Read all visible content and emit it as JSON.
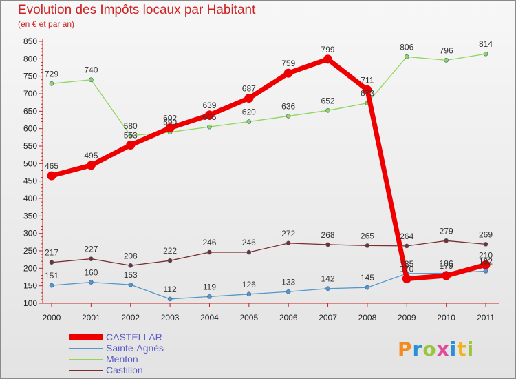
{
  "header": {
    "title": "Evolution des Impôts locaux par Habitant",
    "subtitle": "(en € et par an)"
  },
  "logo": {
    "text": "Proxiti",
    "letters": [
      {
        "ch": "P",
        "color": "#f28c1e"
      },
      {
        "ch": "r",
        "color": "#2a8fd4"
      },
      {
        "ch": "o",
        "color": "#9ac43c"
      },
      {
        "ch": "x",
        "color": "#e04c9c"
      },
      {
        "ch": "i",
        "color": "#2a8fd4"
      },
      {
        "ch": "t",
        "color": "#f2b21e"
      },
      {
        "ch": "i",
        "color": "#9ac43c"
      }
    ]
  },
  "chart_data": {
    "type": "line",
    "x": [
      "2000",
      "2001",
      "2002",
      "2003",
      "2004",
      "2005",
      "2006",
      "2007",
      "2008",
      "2009",
      "2010",
      "2011"
    ],
    "yticks": [
      100,
      150,
      200,
      250,
      300,
      350,
      400,
      450,
      500,
      550,
      600,
      650,
      700,
      750,
      800,
      850
    ],
    "ylim": [
      100,
      850
    ],
    "grid": false,
    "legend_position": "bottom-left",
    "series": [
      {
        "name": "CASTELLAR",
        "color": "#ee0000",
        "values": [
          465,
          495,
          553,
          602,
          639,
          687,
          759,
          799,
          711,
          170,
          179,
          210
        ]
      },
      {
        "name": "Sainte-Agnès",
        "color": "#5596cc",
        "values": [
          151,
          160,
          153,
          112,
          119,
          126,
          133,
          142,
          145,
          185,
          186,
          192
        ]
      },
      {
        "name": "Menton",
        "color": "#8fd65a",
        "values": [
          729,
          740,
          580,
          590,
          605,
          620,
          636,
          652,
          673,
          806,
          796,
          814
        ]
      },
      {
        "name": "Castillon",
        "color": "#7a2e2e",
        "values": [
          217,
          227,
          208,
          222,
          246,
          246,
          272,
          268,
          265,
          264,
          279,
          269
        ]
      }
    ]
  }
}
